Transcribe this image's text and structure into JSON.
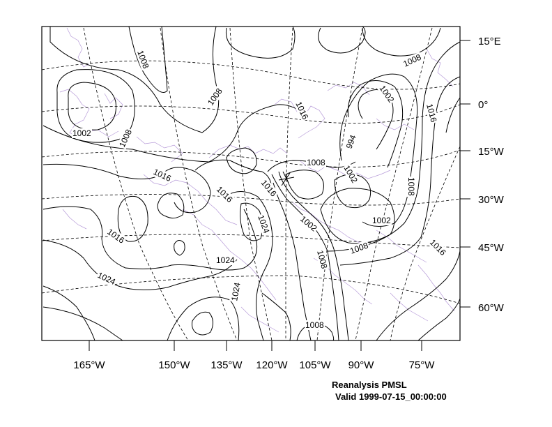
{
  "map": {
    "product": "Reanalysis PMSL",
    "valid": "Valid 1999-07-15_00:00:00",
    "bottom_axis_labels": [
      "165°W",
      "150°W",
      "135°W",
      "120°W",
      "105°W",
      "90°W",
      "75°W"
    ],
    "right_axis_labels": [
      "15°E",
      "0°",
      "15°W",
      "30°W",
      "45°W",
      "60°W"
    ],
    "contour_labels": [
      "1008",
      "1008",
      "1002",
      "1008",
      "1016",
      "1016",
      "1016",
      "1016",
      "1024",
      "1024",
      "1024",
      "1024",
      "1016",
      "994",
      "1008",
      "1002",
      "1002",
      "1002",
      "1008",
      "1008",
      "1008",
      "1008",
      "1016",
      "1016"
    ],
    "colors": {
      "coastline": "#b69ad8",
      "isobar": "#000000",
      "frame": "#000000"
    }
  }
}
